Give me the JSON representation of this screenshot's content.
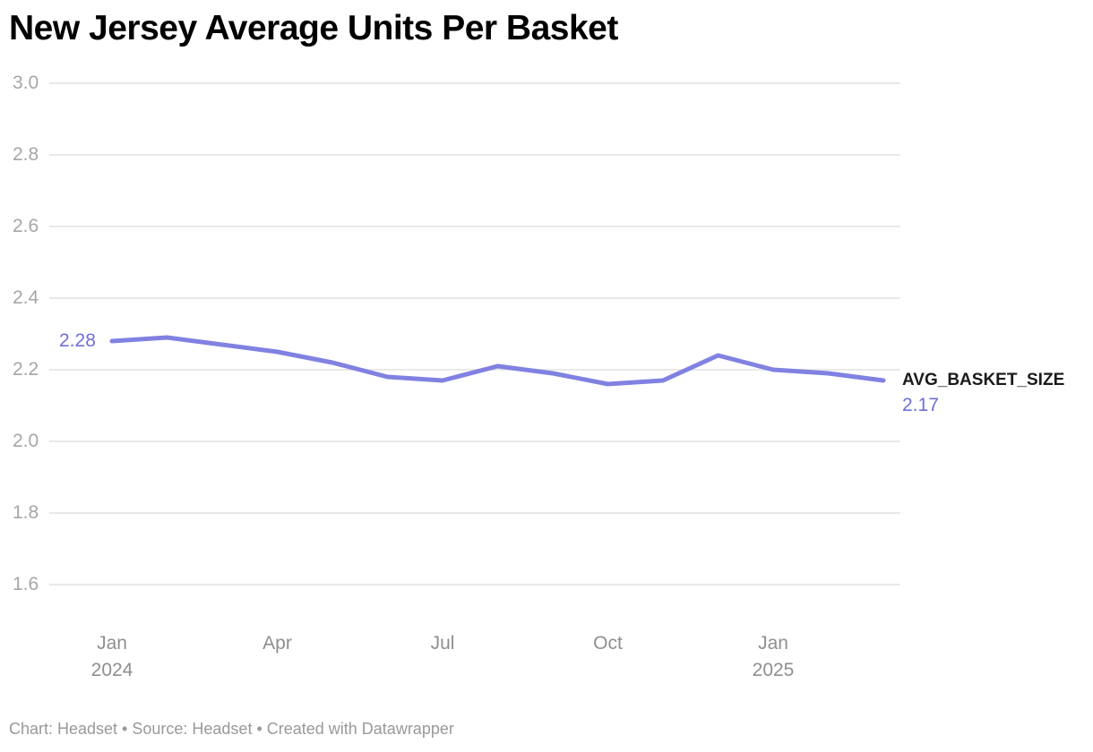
{
  "header": {
    "title": "New Jersey Average Units Per Basket"
  },
  "footer": {
    "text": "Chart: Headset • Source: Headset • Created with Datawrapper"
  },
  "annotations": {
    "start_value_label": "2.28",
    "series_name_label": "AVG_BASKET_SIZE",
    "end_value_label": "2.17"
  },
  "colors": {
    "line": "#8181e2",
    "value_labels": "#6f6fd8",
    "gridline": "#e2e2e2",
    "y_tick_text": "#a6a6a6",
    "x_tick_text": "#8f8f8f",
    "title_text": "#000000",
    "footer_text": "#999999"
  },
  "chart_data": {
    "type": "line",
    "title": "New Jersey Average Units Per Basket",
    "xlabel": "",
    "ylabel": "",
    "x": [
      "Jan 2024",
      "Feb 2024",
      "Mar 2024",
      "Apr 2024",
      "May 2024",
      "Jun 2024",
      "Jul 2024",
      "Aug 2024",
      "Sep 2024",
      "Oct 2024",
      "Nov 2024",
      "Dec 2024",
      "Jan 2025",
      "Feb 2025",
      "Mar 2025"
    ],
    "series": [
      {
        "name": "AVG_BASKET_SIZE",
        "values": [
          2.28,
          2.29,
          2.27,
          2.25,
          2.22,
          2.18,
          2.17,
          2.21,
          2.19,
          2.16,
          2.17,
          2.24,
          2.2,
          2.19,
          2.17
        ]
      }
    ],
    "ylim": [
      1.6,
      3.0
    ],
    "yticks": [
      "3.0",
      "2.8",
      "2.6",
      "2.4",
      "2.2",
      "2.0",
      "1.8",
      "1.6"
    ],
    "xticks": [
      {
        "label": "Jan",
        "sub": "2024",
        "month_index": 0
      },
      {
        "label": "Apr",
        "sub": "",
        "month_index": 3
      },
      {
        "label": "Jul",
        "sub": "",
        "month_index": 6
      },
      {
        "label": "Oct",
        "sub": "",
        "month_index": 9
      },
      {
        "label": "Jan",
        "sub": "2025",
        "month_index": 12
      }
    ],
    "grid": "horizontal",
    "legend_position": "end-of-line"
  }
}
